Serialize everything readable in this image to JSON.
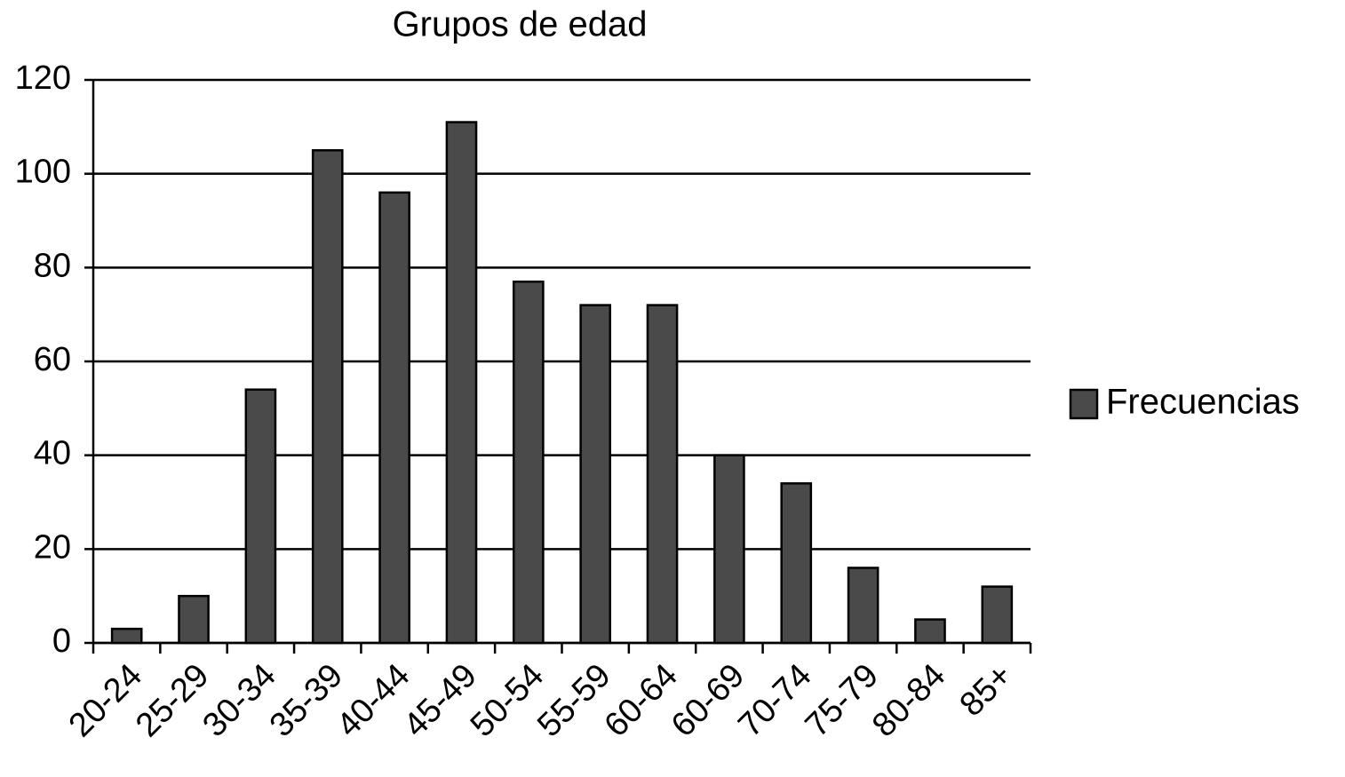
{
  "chart_data": {
    "type": "bar",
    "title": "Grupos de edad",
    "categories": [
      "20-24",
      "25-29",
      "30-34",
      "35-39",
      "40-44",
      "45-49",
      "50-54",
      "55-59",
      "60-64",
      "60-69",
      "70-74",
      "75-79",
      "80-84",
      "85+"
    ],
    "series": [
      {
        "name": "Frecuencias",
        "color": "#4a4a4a",
        "values": [
          3,
          10,
          54,
          105,
          96,
          111,
          77,
          72,
          72,
          40,
          34,
          16,
          5,
          12
        ]
      }
    ],
    "ylim": [
      0,
      120
    ],
    "yticks": [
      0,
      20,
      40,
      60,
      80,
      100,
      120
    ],
    "grid": true,
    "legend": "right"
  }
}
